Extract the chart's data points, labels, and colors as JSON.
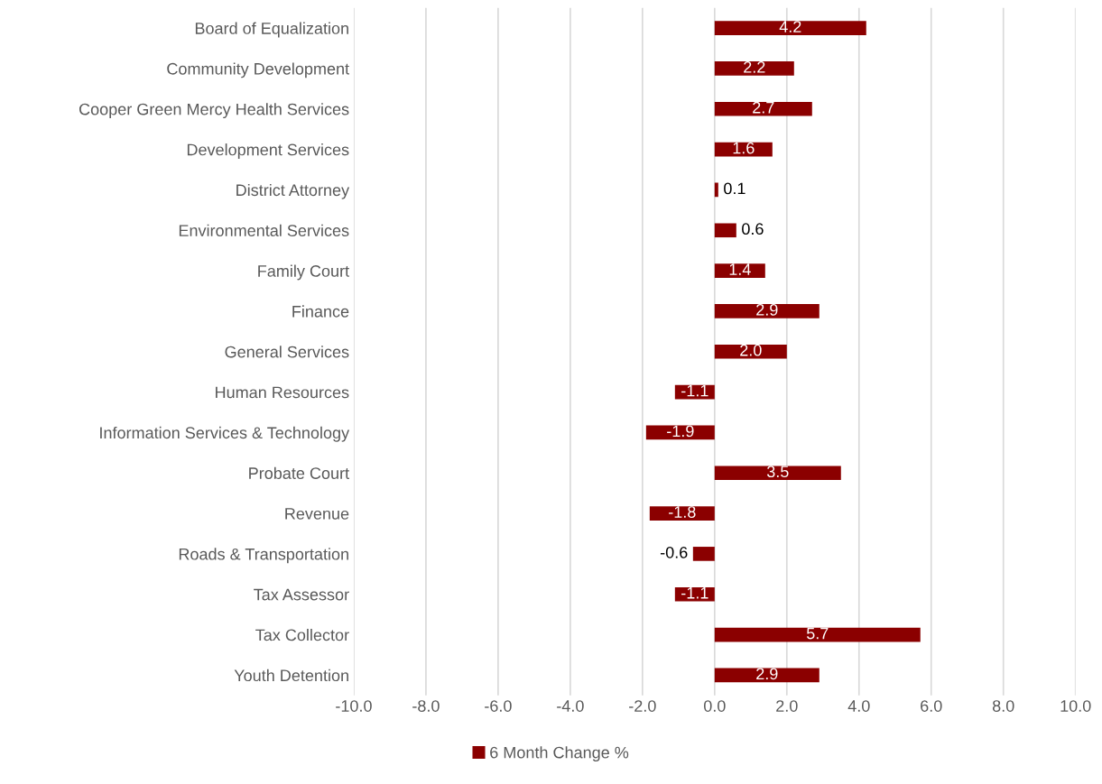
{
  "chart_data": {
    "type": "bar",
    "orientation": "horizontal",
    "categories": [
      "Board of Equalization",
      "Community Development",
      "Cooper Green Mercy Health Services",
      "Development Services",
      "District Attorney",
      "Environmental Services",
      "Family Court",
      "Finance",
      "General Services",
      "Human Resources",
      "Information Services & Technology",
      "Probate Court",
      "Revenue",
      "Roads & Transportation",
      "Tax Assessor",
      "Tax Collector",
      "Youth Detention"
    ],
    "series": [
      {
        "name": "6 Month Change %",
        "color": "#8b0000",
        "values": [
          4.2,
          2.2,
          2.7,
          1.6,
          0.1,
          0.6,
          1.4,
          2.9,
          2.0,
          -1.1,
          -1.9,
          3.5,
          -1.8,
          -0.6,
          -1.1,
          5.7,
          2.9
        ],
        "value_labels": [
          "4.2",
          "2.2",
          "2.7",
          "1.6",
          "0.1",
          "0.6",
          "1.4",
          "2.9",
          "2.0",
          "-1.1",
          "-1.9",
          "3.5",
          "-1.8",
          "-0.6",
          "-1.1",
          "5.7",
          "2.9"
        ]
      }
    ],
    "xlim": [
      -10,
      10
    ],
    "xticks": [
      {
        "value": -10,
        "label": "-10.0"
      },
      {
        "value": -8,
        "label": "-8.0"
      },
      {
        "value": -6,
        "label": "-6.0"
      },
      {
        "value": -4,
        "label": "-4.0"
      },
      {
        "value": -2,
        "label": "-2.0"
      },
      {
        "value": 0,
        "label": "0.0"
      },
      {
        "value": 2,
        "label": "2.0"
      },
      {
        "value": 4,
        "label": "4.0"
      },
      {
        "value": 6,
        "label": "6.0"
      },
      {
        "value": 8,
        "label": "8.0"
      },
      {
        "value": 10,
        "label": "10.0"
      }
    ],
    "grid": "x",
    "legend": "bottom"
  }
}
